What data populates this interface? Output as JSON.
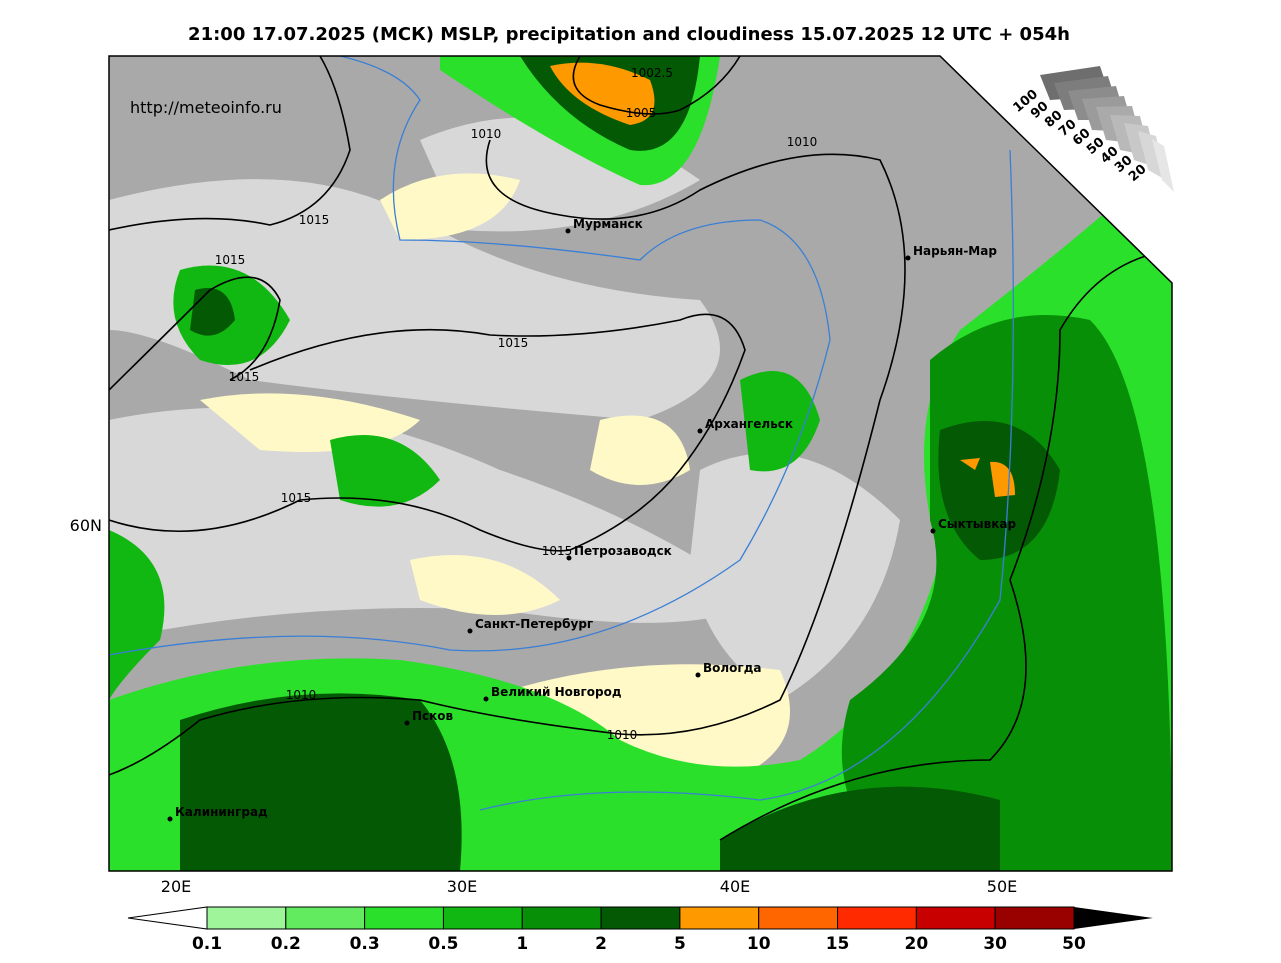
{
  "header": {
    "title": "21:00 17.07.2025 (МСК) MSLP, precipitation and cloudiness 15.07.2025 12 UTC + 054h"
  },
  "map": {
    "source_url": "http://meteoinfo.ru",
    "isobar_labels": [
      "1002.5",
      "1005",
      "1010",
      "1010",
      "1015",
      "1015",
      "1015",
      "1015",
      "1015",
      "1015",
      "1010",
      "1010"
    ],
    "cities": [
      "Мурманск",
      "Нарьян-Мар",
      "Архангельск",
      "Сыктывкар",
      "Петрозаводск",
      "Санкт-Петербург",
      "Вологда",
      "Великий Новгород",
      "Псков",
      "Калининград"
    ],
    "lon_labels": [
      "20E",
      "30E",
      "40E",
      "50E"
    ],
    "lat_labels": [
      "60N"
    ],
    "cloud_scale": [
      "100",
      "90",
      "80",
      "70",
      "60",
      "50",
      "40",
      "30",
      "20"
    ]
  },
  "colorbar": {
    "ticks": [
      "0.1",
      "0.2",
      "0.3",
      "0.5",
      "1",
      "2",
      "5",
      "10",
      "15",
      "20",
      "30",
      "50"
    ],
    "colors": [
      "#9ef59a",
      "#62eb5e",
      "#2be02b",
      "#11b811",
      "#088f08",
      "#045a04",
      "#ff9900",
      "#ff6600",
      "#ff2a00",
      "#c80000",
      "#990000"
    ]
  }
}
